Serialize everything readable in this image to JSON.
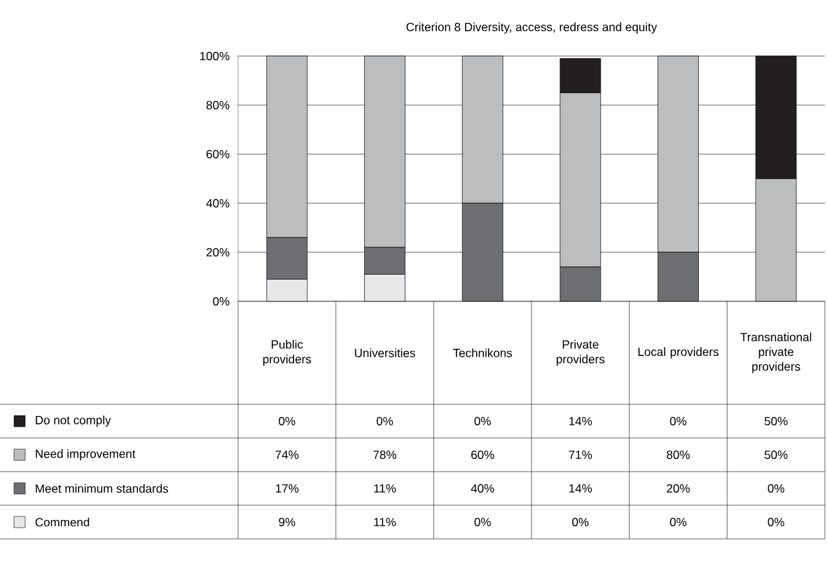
{
  "chart_data": {
    "type": "bar",
    "stacked": true,
    "title": "Criterion 8 Diversity, access, redress and equity",
    "categories": [
      "Public providers",
      "Universities",
      "Technikons",
      "Private providers",
      "Local providers",
      "Transnational private providers"
    ],
    "series": [
      {
        "name": "Commend",
        "color": "#e6e7e8",
        "values": [
          9,
          11,
          0,
          0,
          0,
          0
        ],
        "value_labels": [
          "9%",
          "11%",
          "0%",
          "0%",
          "0%",
          "0%"
        ]
      },
      {
        "name": "Meet minimum standards",
        "color": "#6d6e71",
        "values": [
          17,
          11,
          40,
          14,
          20,
          0
        ],
        "value_labels": [
          "17%",
          "11%",
          "40%",
          "14%",
          "20%",
          "0%"
        ]
      },
      {
        "name": "Need improvement",
        "color": "#bcbdbf",
        "values": [
          74,
          78,
          60,
          71,
          80,
          50
        ],
        "value_labels": [
          "74%",
          "78%",
          "60%",
          "71%",
          "80%",
          "50%"
        ]
      },
      {
        "name": "Do not comply",
        "color": "#231f20",
        "values": [
          0,
          0,
          0,
          14,
          0,
          50
        ],
        "value_labels": [
          "0%",
          "0%",
          "0%",
          "14%",
          "0%",
          "50%"
        ]
      }
    ],
    "ylim": [
      0,
      100
    ],
    "yticks": [
      {
        "value": 0,
        "label": "0%"
      },
      {
        "value": 20,
        "label": "20%"
      },
      {
        "value": 40,
        "label": "40%"
      },
      {
        "value": 60,
        "label": "60%"
      },
      {
        "value": 80,
        "label": "80%"
      },
      {
        "value": 100,
        "label": "100%"
      }
    ],
    "grid": "y",
    "legend": "bottom"
  }
}
